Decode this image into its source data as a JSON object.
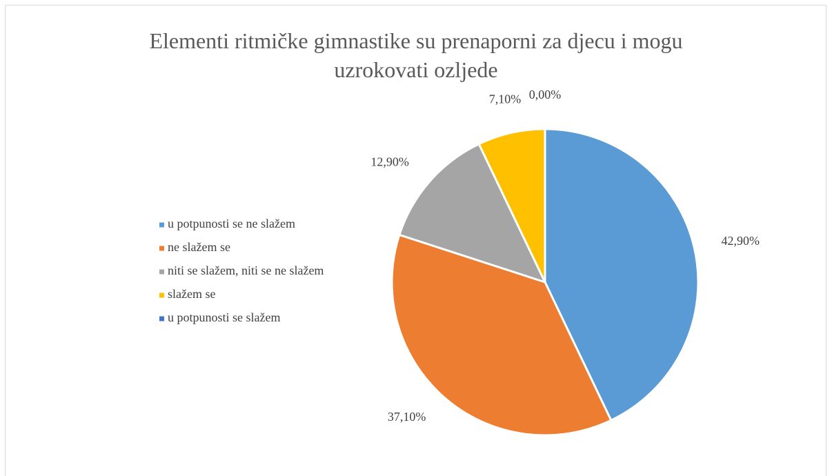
{
  "chart_data": {
    "type": "pie",
    "title": "Elementi ritmičke gimnastike su prenaporni za djecu i mogu uzrokovati ozljede",
    "categories": [
      "u potpunosti se ne slažem",
      "ne slažem se",
      "niti se slažem, niti se ne slažem",
      "slažem se",
      "u potpunosti se slažem"
    ],
    "values": [
      42.9,
      37.1,
      12.9,
      7.1,
      0
    ],
    "value_labels": [
      "42,90%",
      "37,10%",
      "12,90%",
      "7,10%",
      "0,00%"
    ],
    "colors": [
      "#5b9bd5",
      "#ed7d31",
      "#a5a5a5",
      "#ffc000",
      "#4472c4"
    ],
    "legend": "left"
  }
}
